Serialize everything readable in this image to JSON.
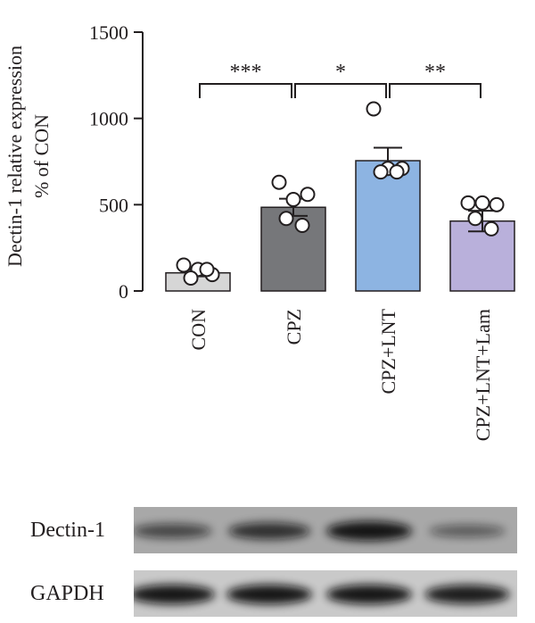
{
  "chart_data": {
    "type": "bar",
    "ylabel_line1": "Dectin-1 relative expression",
    "ylabel_line2": "% of CON",
    "ylim": [
      0,
      1500
    ],
    "yticks": [
      0,
      500,
      1000,
      1500
    ],
    "categories": [
      "CON",
      "CPZ",
      "CPZ+LNT",
      "CPZ+LNT+Lam"
    ],
    "values": [
      105,
      485,
      755,
      405
    ],
    "errors": [
      20,
      50,
      75,
      60
    ],
    "points": [
      [
        150,
        125,
        95,
        75,
        125
      ],
      [
        630,
        530,
        560,
        420,
        380
      ],
      [
        1055,
        710,
        710,
        690,
        690
      ],
      [
        510,
        510,
        500,
        420,
        360
      ]
    ],
    "colors": [
      "#d6d6d6",
      "#76777a",
      "#8db4e2",
      "#b9b0db"
    ],
    "significance": [
      {
        "from": 0,
        "to": 1,
        "label": "***"
      },
      {
        "from": 1,
        "to": 2,
        "label": "*"
      },
      {
        "from": 2,
        "to": 3,
        "label": "**"
      }
    ]
  },
  "blots": [
    {
      "label": "Dectin-1",
      "band_intensity": [
        0.55,
        0.75,
        1.0,
        0.35
      ]
    },
    {
      "label": "GAPDH",
      "band_intensity": [
        1.0,
        1.0,
        1.0,
        0.95
      ]
    }
  ]
}
